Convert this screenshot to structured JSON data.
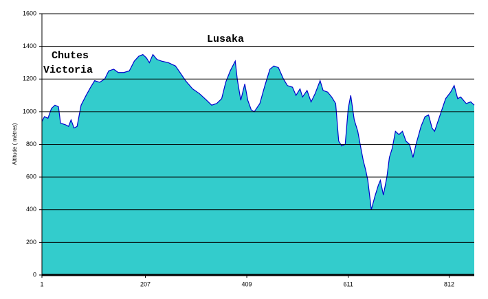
{
  "chart_data": {
    "type": "area",
    "y_label": "Altitude ( mètres)",
    "annotations": [
      "Lusaka",
      "Chutes",
      "Victoria"
    ],
    "x": [
      1,
      6,
      13,
      20,
      27,
      34,
      38,
      48,
      54,
      59,
      65,
      71,
      79,
      89,
      98,
      106,
      116,
      126,
      134,
      144,
      153,
      164,
      175,
      185,
      194,
      202,
      209,
      215,
      222,
      230,
      239,
      253,
      267,
      276,
      287,
      301,
      315,
      329,
      339,
      349,
      359,
      367,
      376,
      386,
      390,
      397,
      405,
      411,
      418,
      424,
      435,
      445,
      455,
      463,
      472,
      482,
      490,
      500,
      507,
      515,
      520,
      529,
      537,
      545,
      555,
      561,
      570,
      578,
      586,
      592,
      598,
      605,
      611,
      616,
      623,
      630,
      636,
      641,
      646,
      650,
      657,
      664,
      671,
      675,
      681,
      688,
      693,
      699,
      705,
      712,
      719,
      726,
      733,
      740,
      746,
      756,
      764,
      771,
      778,
      783,
      794,
      805,
      815,
      822,
      829,
      835,
      846,
      855,
      862
    ],
    "values": [
      940,
      970,
      960,
      1020,
      1040,
      1030,
      930,
      920,
      910,
      950,
      900,
      910,
      1040,
      1100,
      1150,
      1190,
      1180,
      1200,
      1250,
      1260,
      1240,
      1240,
      1250,
      1310,
      1340,
      1350,
      1330,
      1300,
      1350,
      1320,
      1310,
      1300,
      1280,
      1240,
      1190,
      1140,
      1110,
      1070,
      1040,
      1050,
      1080,
      1180,
      1250,
      1310,
      1200,
      1070,
      1170,
      1070,
      1010,
      1000,
      1050,
      1160,
      1260,
      1280,
      1270,
      1200,
      1160,
      1150,
      1100,
      1140,
      1090,
      1130,
      1060,
      1110,
      1190,
      1130,
      1120,
      1090,
      1050,
      820,
      790,
      800,
      1020,
      1100,
      950,
      880,
      780,
      700,
      640,
      580,
      400,
      480,
      550,
      580,
      490,
      600,
      720,
      780,
      880,
      860,
      880,
      820,
      800,
      720,
      800,
      910,
      970,
      980,
      900,
      880,
      980,
      1080,
      1120,
      1160,
      1080,
      1090,
      1050,
      1060,
      1040
    ],
    "color": "#33cccc",
    "line_color": "#0000cc",
    "xlim": [
      1,
      862
    ],
    "xticks": [
      1,
      207,
      409,
      611,
      812
    ],
    "ylim": [
      0,
      1600
    ],
    "yticks": [
      0,
      200,
      400,
      600,
      800,
      1000,
      1200,
      1400,
      1600
    ],
    "grid": true
  }
}
